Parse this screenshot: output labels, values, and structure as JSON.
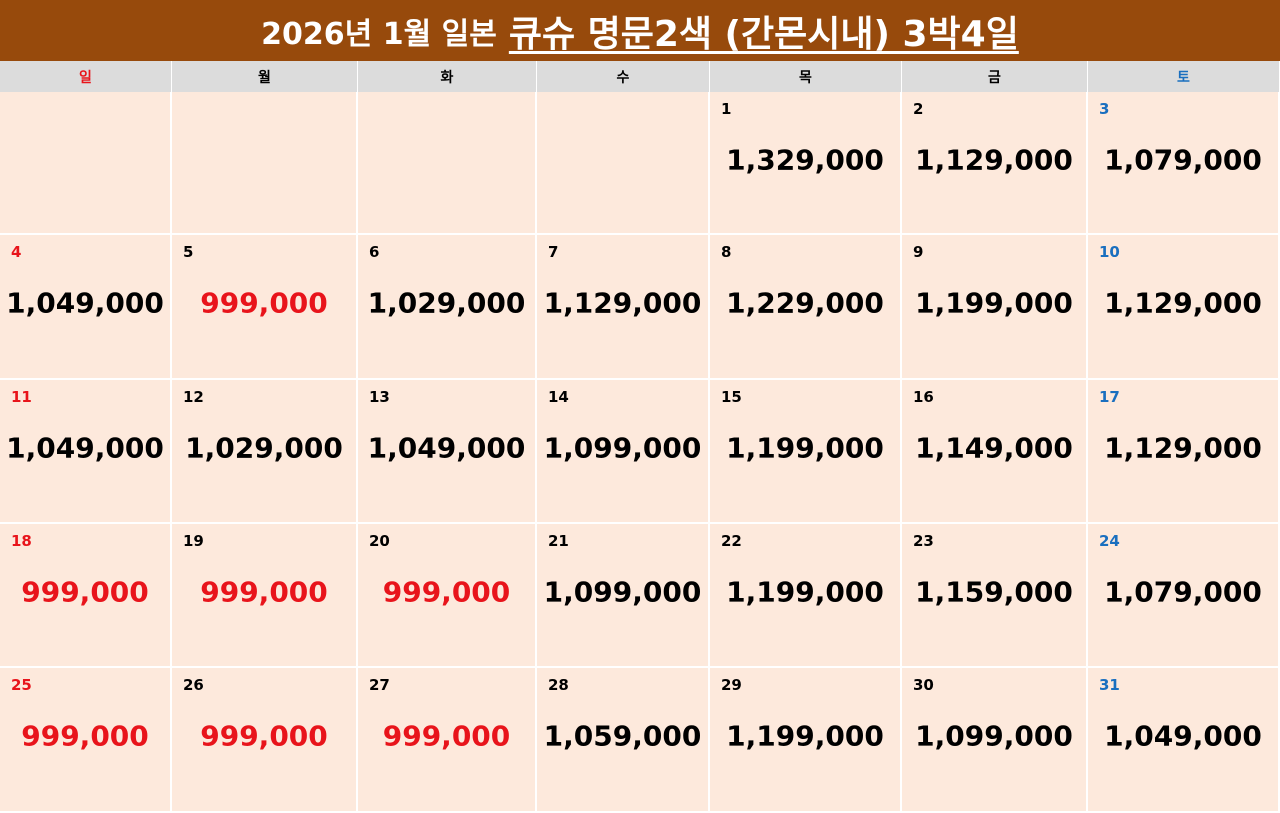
{
  "header": {
    "title_prefix": "2026년 1월 일본",
    "title_main": "큐슈 명문2색 (간몬시내) 3박4일"
  },
  "table": {
    "weekdays": [
      "일",
      "월",
      "화",
      "수",
      "목",
      "금",
      "토"
    ],
    "weeks": [
      [
        null,
        null,
        null,
        null,
        {
          "day": "1",
          "price": "1,329,000"
        },
        {
          "day": "2",
          "price": "1,129,000"
        },
        {
          "day": "3",
          "price": "1,079,000"
        }
      ],
      [
        {
          "day": "4",
          "price": "1,049,000"
        },
        {
          "day": "5",
          "price": "999,000",
          "price_color": "#e8141b"
        },
        {
          "day": "6",
          "price": "1,029,000"
        },
        {
          "day": "7",
          "price": "1,129,000"
        },
        {
          "day": "8",
          "price": "1,229,000"
        },
        {
          "day": "9",
          "price": "1,199,000"
        },
        {
          "day": "10",
          "price": "1,129,000"
        }
      ],
      [
        {
          "day": "11",
          "price": "1,049,000"
        },
        {
          "day": "12",
          "price": "1,029,000"
        },
        {
          "day": "13",
          "price": "1,049,000"
        },
        {
          "day": "14",
          "price": "1,099,000"
        },
        {
          "day": "15",
          "price": "1,199,000"
        },
        {
          "day": "16",
          "price": "1,149,000"
        },
        {
          "day": "17",
          "price": "1,129,000"
        }
      ],
      [
        {
          "day": "18",
          "price": "999,000",
          "price_color": "#e8141b"
        },
        {
          "day": "19",
          "price": "999,000",
          "price_color": "#e8141b"
        },
        {
          "day": "20",
          "price": "999,000",
          "price_color": "#e8141b"
        },
        {
          "day": "21",
          "price": "1,099,000"
        },
        {
          "day": "22",
          "price": "1,199,000"
        },
        {
          "day": "23",
          "price": "1,159,000"
        },
        {
          "day": "24",
          "price": "1,079,000"
        }
      ],
      [
        {
          "day": "25",
          "price": "999,000",
          "price_color": "#e8141b"
        },
        {
          "day": "26",
          "price": "999,000",
          "price_color": "#e8141b"
        },
        {
          "day": "27",
          "price": "999,000",
          "price_color": "#e8141b"
        },
        {
          "day": "28",
          "price": "1,059,000"
        },
        {
          "day": "29",
          "price": "1,199,000"
        },
        {
          "day": "30",
          "price": "1,099,000"
        },
        {
          "day": "31",
          "price": "1,049,000"
        }
      ]
    ]
  }
}
